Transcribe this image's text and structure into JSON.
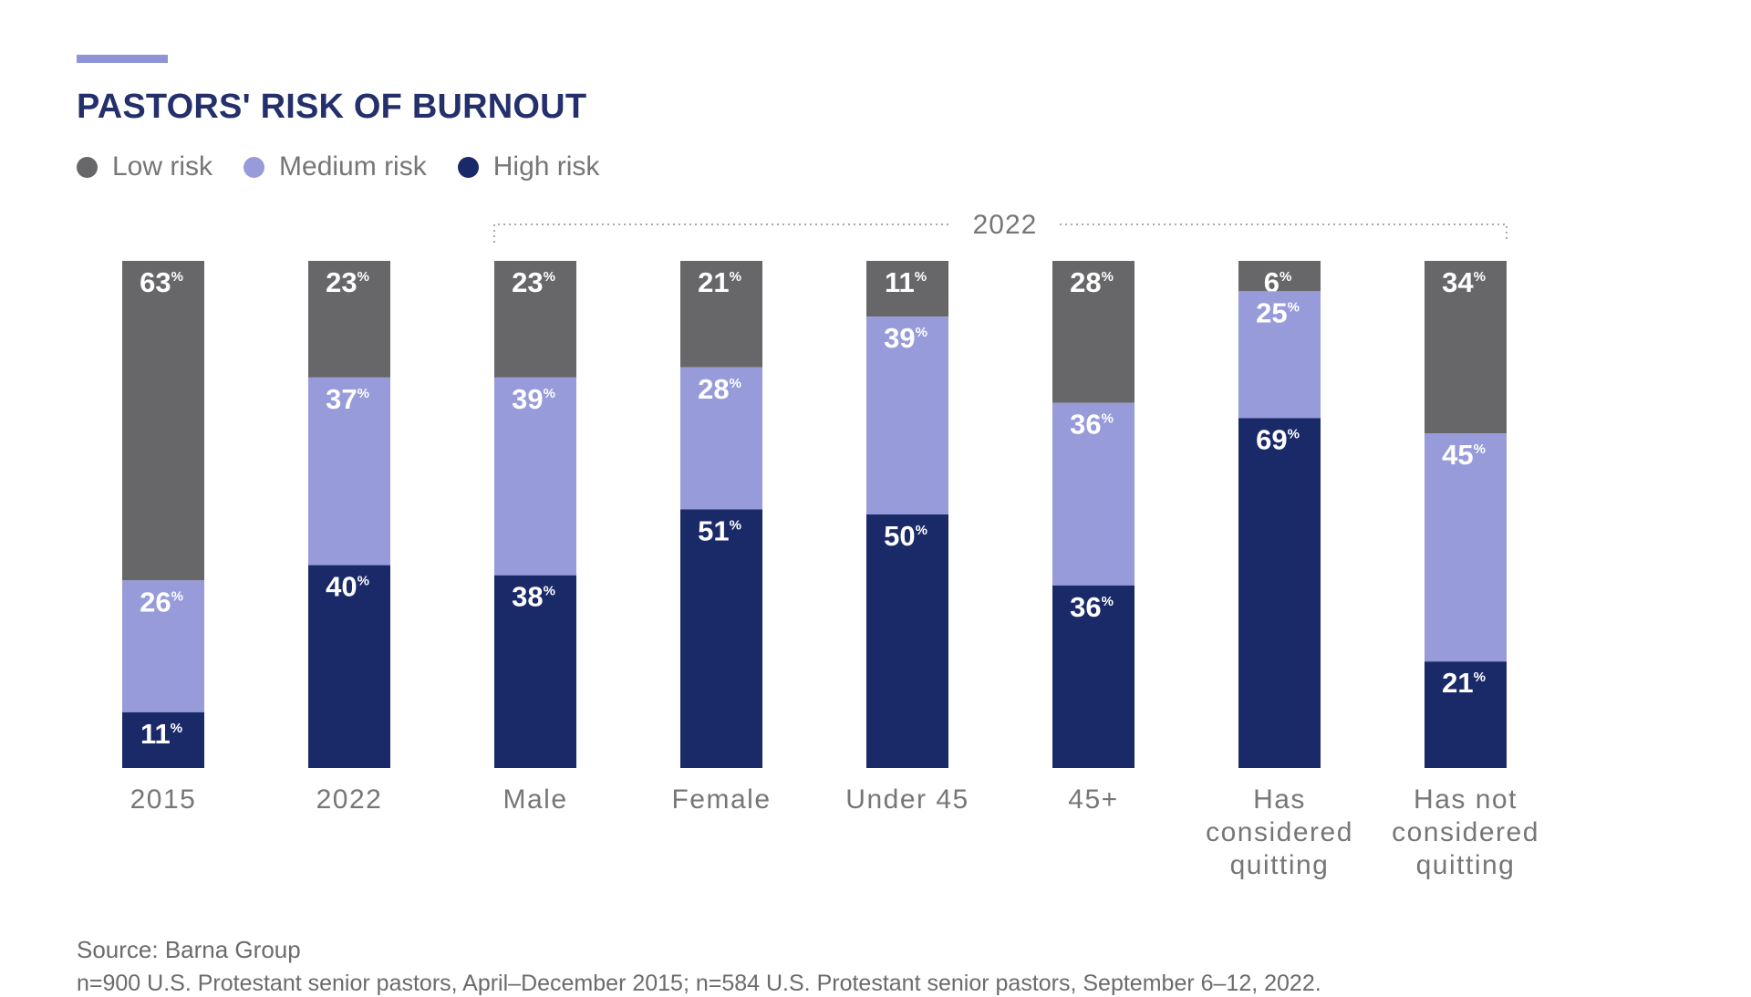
{
  "title": "PASTORS' RISK OF BURNOUT",
  "source": "Source: Barna Group",
  "note": "n=900 U.S. Protestant senior pastors, April–December 2015; n=584 U.S. Protestant senior pastors, September 6–12, 2022.",
  "colors": {
    "title": "#24306b",
    "accent": "#8f94d6",
    "low": "#676769",
    "medium": "#979bd9",
    "high": "#1a2a68",
    "text": "#767676"
  },
  "legend": [
    {
      "label": "Low risk",
      "color": "#676769"
    },
    {
      "label": "Medium risk",
      "color": "#979bd9"
    },
    {
      "label": "High risk",
      "color": "#1a2a68"
    }
  ],
  "chart_data": {
    "type": "bar",
    "stacked": true,
    "bracket_label": "2022",
    "percent_symbol": "%",
    "categories": [
      [
        "2015"
      ],
      [
        "2022"
      ],
      [
        "Male"
      ],
      [
        "Female"
      ],
      [
        "Under 45"
      ],
      [
        "45+"
      ],
      [
        "Has",
        "considered",
        "quitting"
      ],
      [
        "Has not",
        "considered",
        "quitting"
      ]
    ],
    "series": [
      {
        "name": "Low risk",
        "values": [
          63,
          23,
          23,
          21,
          11,
          28,
          6,
          34
        ]
      },
      {
        "name": "Medium risk",
        "values": [
          26,
          37,
          39,
          28,
          39,
          36,
          25,
          45
        ]
      },
      {
        "name": "High risk",
        "values": [
          11,
          40,
          38,
          51,
          50,
          36,
          69,
          21
        ]
      }
    ],
    "ylim": [
      0,
      100
    ],
    "legend_position": "top-left",
    "grid": false
  }
}
